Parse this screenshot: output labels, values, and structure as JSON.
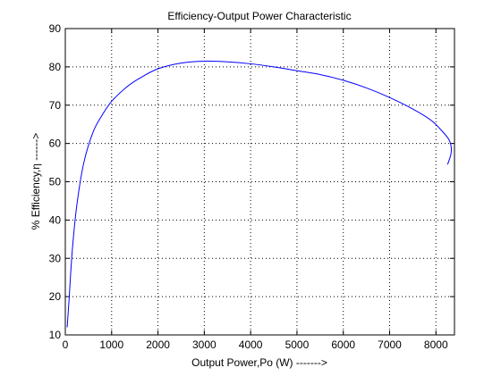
{
  "chart_data": {
    "type": "line",
    "title": "Efficiency-Output Power Characteristic",
    "xlabel": "Output Power,Po (W) ------->",
    "ylabel": "% Efficiency,η ------>",
    "xlim": [
      0,
      8400
    ],
    "ylim": [
      10,
      90
    ],
    "xticks": [
      0,
      1000,
      2000,
      3000,
      4000,
      5000,
      6000,
      7000,
      8000
    ],
    "yticks": [
      10,
      20,
      30,
      40,
      50,
      60,
      70,
      80,
      90
    ],
    "xtick_labels": [
      "0",
      "1000",
      "2000",
      "3000",
      "4000",
      "5000",
      "6000",
      "7000",
      "8000"
    ],
    "ytick_labels": [
      "10",
      "20",
      "30",
      "40",
      "50",
      "60",
      "70",
      "80",
      "90"
    ],
    "grid": true,
    "grid_style": "dotted",
    "series": [
      {
        "color": "#0000ff",
        "x": [
          40,
          80,
          150,
          250,
          400,
          600,
          800,
          1000,
          1300,
          1600,
          2000,
          2500,
          3000,
          3500,
          4000,
          4500,
          5000,
          5500,
          6000,
          6500,
          7000,
          7500,
          7900,
          8150,
          8280,
          8330,
          8320,
          8250
        ],
        "y": [
          12,
          19,
          32,
          44,
          55,
          63,
          67.5,
          71,
          74.5,
          77,
          79.5,
          81,
          81.5,
          81.3,
          80.8,
          80,
          79,
          78,
          76.5,
          74.5,
          72,
          69,
          66,
          63,
          61,
          59,
          57,
          54.5
        ]
      }
    ]
  }
}
